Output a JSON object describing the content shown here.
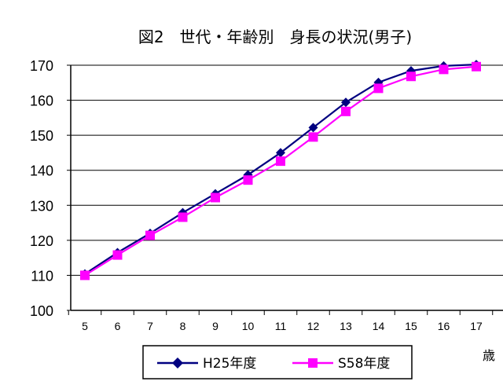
{
  "chart_data": {
    "type": "line",
    "title": "図2　世代・年齢別　身長の状況(男子)",
    "xlabel": "",
    "x_unit": "歳",
    "ylabel": "",
    "x": [
      5,
      6,
      7,
      8,
      9,
      10,
      11,
      12,
      13,
      14,
      15,
      16,
      17
    ],
    "ylim": [
      100,
      170
    ],
    "yticks": [
      100,
      110,
      120,
      130,
      140,
      150,
      160,
      170
    ],
    "grid": true,
    "legend_position": "bottom",
    "series": [
      {
        "name": "H25年度",
        "color": "#000080",
        "marker": "diamond",
        "values": [
          110.4,
          116.5,
          122.0,
          127.9,
          133.3,
          138.7,
          145.0,
          152.2,
          159.4,
          165.1,
          168.4,
          169.8,
          170.2
        ]
      },
      {
        "name": "S58年度",
        "color": "#FF00FF",
        "marker": "square",
        "values": [
          110.0,
          115.8,
          121.4,
          126.6,
          132.2,
          137.2,
          142.6,
          149.5,
          156.8,
          163.4,
          166.8,
          168.8,
          169.6
        ]
      }
    ]
  }
}
